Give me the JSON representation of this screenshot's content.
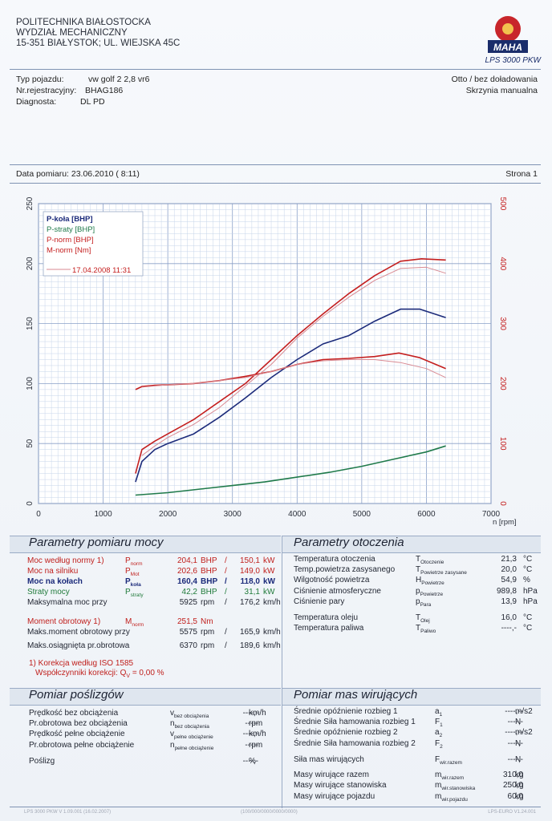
{
  "header": {
    "org_line1": "POLITECHNIKA BIAŁOSTOCKA",
    "org_line2": "WYDZIAŁ MECHANICZNY",
    "org_line3": "15-351 BIAŁYSTOK; UL. WIEJSKA 45C",
    "model": "LPS 3000 PKW",
    "logo_text": "MAHA"
  },
  "vehicle": {
    "type_label": "Typ pojazdu:",
    "type_value": "vw golf 2 2,8 vr6",
    "reg_label": "Nr.rejestracyjny:",
    "reg_value": "BHAG186",
    "diag_label": "Diagnosta:",
    "diag_value": "DL PD",
    "fuel": "Otto / bez doładowania",
    "gearbox": "Skrzynia manualna"
  },
  "meta": {
    "date_label": "Data pomiaru: 23.06.2010 ( 8:11)",
    "page": "Strona 1"
  },
  "chart_data": {
    "type": "line",
    "x_ticks": [
      "0",
      "1000",
      "2000",
      "3000",
      "4000",
      "5000",
      "6000",
      "7000"
    ],
    "xlabel": "n [rpm]",
    "xlim": [
      0,
      7000
    ],
    "y_left_ticks": [
      "0",
      "50",
      "100",
      "150",
      "200",
      "250"
    ],
    "ylim_left": [
      0,
      250
    ],
    "y_right_ticks": [
      "0",
      "100",
      "200",
      "300",
      "400",
      "500"
    ],
    "ylim_right": [
      0,
      500
    ],
    "legend": [
      "P-koła [BHP]",
      "P-straty [BHP]",
      "P-norm [BHP]",
      "M-norm [Nm]",
      "17.04.2008 11:31"
    ],
    "series": [
      {
        "name": "P-koła [BHP]",
        "color": "#1b2a7a",
        "axis": "left",
        "x": [
          1500,
          1600,
          1800,
          2000,
          2400,
          2800,
          3200,
          3600,
          4000,
          4400,
          4800,
          5200,
          5600,
          5900,
          6300
        ],
        "y": [
          18,
          35,
          45,
          50,
          58,
          72,
          88,
          105,
          120,
          133,
          140,
          152,
          162,
          162,
          155
        ]
      },
      {
        "name": "P-straty [BHP]",
        "color": "#1f7a4a",
        "axis": "left",
        "x": [
          1500,
          2000,
          2500,
          3000,
          3500,
          4000,
          4500,
          5000,
          5500,
          6000,
          6300
        ],
        "y": [
          7,
          9,
          12,
          15,
          18,
          22,
          26,
          31,
          37,
          43,
          48
        ]
      },
      {
        "name": "P-norm [BHP]",
        "color": "#c41e1e",
        "axis": "left",
        "x": [
          1500,
          1600,
          1800,
          2000,
          2400,
          2800,
          3200,
          3600,
          4000,
          4400,
          4800,
          5200,
          5600,
          5925,
          6300
        ],
        "y": [
          25,
          45,
          52,
          58,
          70,
          85,
          100,
          120,
          140,
          158,
          175,
          190,
          202,
          204,
          203
        ]
      },
      {
        "name": "M-norm [Nm]",
        "color": "#c41e1e",
        "axis": "right",
        "x": [
          1500,
          1600,
          1800,
          2000,
          2400,
          2800,
          3200,
          3600,
          4000,
          4400,
          4800,
          5200,
          5575,
          5900,
          6300
        ],
        "y": [
          190,
          195,
          197,
          198,
          200,
          205,
          212,
          220,
          232,
          240,
          242,
          245,
          251,
          243,
          225
        ]
      },
      {
        "name": "17.04.2008 11:31",
        "color": "#d98a92",
        "axis": "left",
        "x": [
          1600,
          1800,
          2000,
          2400,
          2800,
          3200,
          3600,
          4000,
          4400,
          4800,
          5200,
          5600,
          6000,
          6300
        ],
        "y": [
          40,
          48,
          55,
          66,
          80,
          98,
          116,
          138,
          156,
          172,
          186,
          196,
          197,
          192
        ]
      },
      {
        "name": "17.04.2008 11:31",
        "color": "#d98a92",
        "axis": "right",
        "x": [
          1600,
          2000,
          2400,
          2800,
          3200,
          3600,
          4000,
          4400,
          4800,
          5200,
          5600,
          6000,
          6300
        ],
        "y": [
          194,
          198,
          200,
          205,
          210,
          220,
          232,
          238,
          240,
          240,
          235,
          225,
          210
        ]
      }
    ]
  },
  "power": {
    "title": "Parametry pomiaru mocy",
    "rows": [
      {
        "label": "Moc według normy 1)",
        "sym": "P",
        "sub": "norm",
        "v1": "204,1",
        "u1": "BHP",
        "sep": "/",
        "v2": "150,1",
        "u2": "kW",
        "cls": "red"
      },
      {
        "label": "Moc na silniku",
        "sym": "P",
        "sub": "Mot",
        "v1": "202,6",
        "u1": "BHP",
        "sep": "/",
        "v2": "149,0",
        "u2": "kW",
        "cls": "red"
      },
      {
        "label": "Moc na kołach",
        "sym": "P",
        "sub": "koła",
        "v1": "160,4",
        "u1": "BHP",
        "sep": "/",
        "v2": "118,0",
        "u2": "kW",
        "cls": "blue"
      },
      {
        "label": "Straty mocy",
        "sym": "P",
        "sub": "straty",
        "v1": "42,2",
        "u1": "BHP",
        "sep": "/",
        "v2": "31,1",
        "u2": "kW",
        "cls": "green"
      },
      {
        "label": "Maksymalna moc przy",
        "sym": "",
        "sub": "",
        "v1": "5925",
        "u1": "rpm",
        "sep": "/",
        "v2": "176,2",
        "u2": "km/h",
        "cls": ""
      }
    ],
    "rows2": [
      {
        "label": "Moment obrotowy 1)",
        "sym": "M",
        "sub": "norm",
        "v1": "251,5",
        "u1": "Nm",
        "sep": "",
        "v2": "",
        "u2": "",
        "cls": "red"
      },
      {
        "label": "Maks.moment obrotowy przy",
        "sym": "",
        "sub": "",
        "v1": "5575",
        "u1": "rpm",
        "sep": "/",
        "v2": "165,9",
        "u2": "km/h",
        "cls": ""
      },
      {
        "label": "Maks.osiągnięta pr.obrotowa",
        "sym": "",
        "sub": "",
        "v1": "6370",
        "u1": "rpm",
        "sep": "/",
        "v2": "189,6",
        "u2": "km/h",
        "cls": ""
      }
    ],
    "note1": "1) Korekcja według ISO 1585",
    "note2": "Współczynniki korekcji: Q",
    "note2_sub": "V",
    "note2_val": "=  0,00 %"
  },
  "env": {
    "title": "Parametry otoczenia",
    "rows": [
      {
        "label": "Temperatura otoczenia",
        "sym": "T",
        "sub": "Otoczenie",
        "v": "21,3",
        "u": "°C"
      },
      {
        "label": "Temp.powietrza zasysanego",
        "sym": "T",
        "sub": "Powietrze zasysane",
        "v": "20,0",
        "u": "°C"
      },
      {
        "label": "Wilgotność powietrza",
        "sym": "H",
        "sub": "Powietrze",
        "v": "54,9",
        "u": "%"
      },
      {
        "label": "Ciśnienie atmosferyczne",
        "sym": "p",
        "sub": "Powietrze",
        "v": "989,8",
        "u": "hPa"
      },
      {
        "label": "Ciśnienie pary",
        "sym": "p",
        "sub": "Para",
        "v": "13,9",
        "u": "hPa"
      },
      {
        "label": "Temperatura oleju",
        "sym": "T",
        "sub": "Olej",
        "v": "16,0",
        "u": "°C"
      },
      {
        "label": "Temperatura paliwa",
        "sym": "T",
        "sub": "Paliwo",
        "v": "----,-",
        "u": "°C"
      }
    ]
  },
  "slip": {
    "title": "Pomiar poślizgów",
    "rows": [
      {
        "label": "Prędkość bez obciążenia",
        "sym": "v",
        "sub": "bez obciążenia",
        "v": "----,-",
        "u": "km/h"
      },
      {
        "label": "Pr.obrotowa bez obciążenia",
        "sym": "n",
        "sub": "bez obciążenia",
        "v": "-----",
        "u": "rpm"
      },
      {
        "label": "Prędkość pełne obciążenie",
        "sym": "v",
        "sub": "pełne obciążenie",
        "v": "----,-",
        "u": "km/h"
      },
      {
        "label": "Pr.obrotowa pełne obciążenie",
        "sym": "n",
        "sub": "pełne obciążenie",
        "v": "-----",
        "u": "rpm"
      },
      {
        "label": "Poślizg",
        "sym": "",
        "sub": "",
        "v": "----,-",
        "u": "%"
      }
    ]
  },
  "mass": {
    "title": "Pomiar mas wirujących",
    "rows": [
      {
        "label": "Średnie opóźnienie rozbieg 1",
        "sym": "a",
        "sub": "1",
        "v": "----,--",
        "u": "m/s2"
      },
      {
        "label": "Średnie Siła hamowania rozbieg 1",
        "sym": "F",
        "sub": "1",
        "v": "----,-",
        "u": "N"
      },
      {
        "label": "Średnie opóźnienie rozbieg 2",
        "sym": "a",
        "sub": "2",
        "v": "----,--",
        "u": "m/s2"
      },
      {
        "label": "Średnie Siła hamowania rozbieg 2",
        "sym": "F",
        "sub": "2",
        "v": "----,-",
        "u": "N"
      },
      {
        "label": "Siła mas wirujących",
        "sym": "F",
        "sub": "wir.razem",
        "v": "----,-",
        "u": "N"
      },
      {
        "label": "Masy wirujące razem",
        "sym": "m",
        "sub": "wir.razem",
        "v": "310,0",
        "u": "kg"
      },
      {
        "label": "Masy wirujące stanowiska",
        "sym": "m",
        "sub": "wir.stanowiska",
        "v": "250,0",
        "u": "kg"
      },
      {
        "label": "Masy wirujące pojazdu",
        "sym": "m",
        "sub": "wir.pojazdu",
        "v": "60,0",
        "u": "kg"
      }
    ]
  },
  "footer": {
    "left": "LPS 3000 PKW V 1.09.001 (16.02.2007)",
    "mid": "(100/000/0000/0000/0000)",
    "right": "LPS-EURO V1.24.001"
  }
}
